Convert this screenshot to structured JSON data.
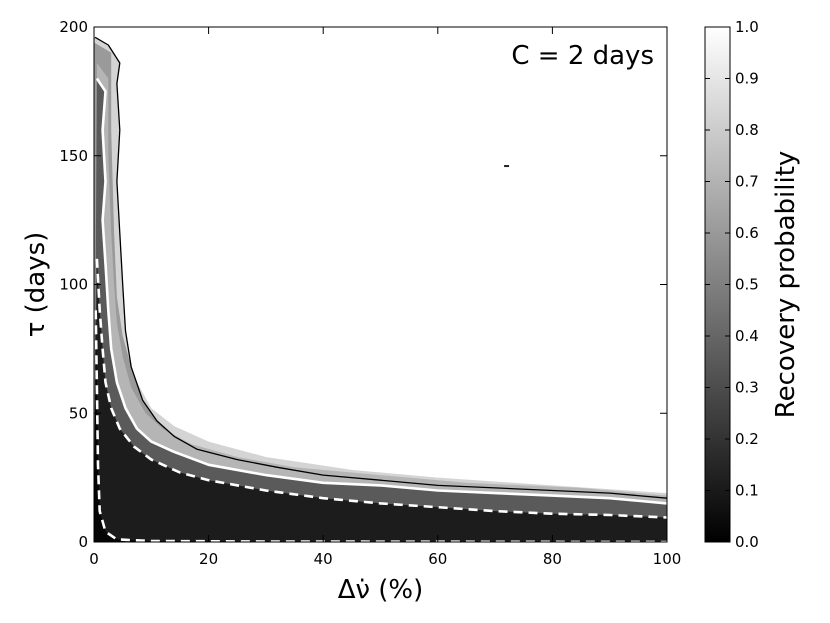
{
  "chart_data": {
    "type": "heatmap",
    "annotation": "C = 2 days",
    "xlabel": "Δν̇ (%)",
    "ylabel": "τ (days)",
    "xlim": [
      0,
      100
    ],
    "ylim": [
      0,
      200
    ],
    "xticks": [
      0,
      20,
      40,
      60,
      80,
      100
    ],
    "yticks": [
      0,
      50,
      100,
      150,
      200
    ],
    "colorbar": {
      "label": "Recovery probability",
      "range": [
        0.0,
        1.0
      ],
      "ticks": [
        "0.0",
        "0.1",
        "0.2",
        "0.3",
        "0.4",
        "0.5",
        "0.6",
        "0.7",
        "0.8",
        "0.9",
        "1.0"
      ],
      "colormap": "greyscale, black = 0.0, white = 1.0"
    },
    "contours": [
      {
        "level": 0.95,
        "style": "solid black",
        "points": [
          [
            0.2,
            196
          ],
          [
            2.5,
            193
          ],
          [
            4.5,
            186
          ],
          [
            4,
            178
          ],
          [
            4.5,
            160
          ],
          [
            4,
            140
          ],
          [
            4.5,
            120
          ],
          [
            5,
            100
          ],
          [
            5.5,
            82
          ],
          [
            6.5,
            68
          ],
          [
            8.5,
            55
          ],
          [
            11,
            47
          ],
          [
            14,
            41
          ],
          [
            18,
            36
          ],
          [
            25,
            32
          ],
          [
            32,
            29
          ],
          [
            40,
            26
          ],
          [
            50,
            24
          ],
          [
            60,
            22
          ],
          [
            70,
            21
          ],
          [
            80,
            20
          ],
          [
            90,
            19
          ],
          [
            100,
            17
          ]
        ]
      },
      {
        "level": 0.5,
        "style": "solid white",
        "points": [
          [
            0.5,
            180
          ],
          [
            2,
            175
          ],
          [
            1.5,
            160
          ],
          [
            2,
            140
          ],
          [
            1.5,
            125
          ],
          [
            2,
            108
          ],
          [
            2.5,
            90
          ],
          [
            3,
            75
          ],
          [
            4,
            62
          ],
          [
            5.5,
            52
          ],
          [
            7.5,
            44
          ],
          [
            10,
            39
          ],
          [
            14,
            35
          ],
          [
            20,
            30
          ],
          [
            30,
            26
          ],
          [
            40,
            23
          ],
          [
            50,
            22
          ],
          [
            60,
            20
          ],
          [
            70,
            19
          ],
          [
            80,
            18
          ],
          [
            90,
            17
          ],
          [
            100,
            15
          ]
        ]
      },
      {
        "level": 0.25,
        "style": "dashed white",
        "points": [
          [
            0.5,
            110
          ],
          [
            1,
            90
          ],
          [
            1.5,
            75
          ],
          [
            2,
            62
          ],
          [
            3,
            52
          ],
          [
            4.5,
            44
          ],
          [
            7,
            37
          ],
          [
            10,
            32
          ],
          [
            15,
            27
          ],
          [
            20,
            24
          ],
          [
            30,
            20
          ],
          [
            40,
            17
          ],
          [
            50,
            15
          ],
          [
            60,
            13.5
          ],
          [
            70,
            12
          ],
          [
            80,
            11
          ],
          [
            90,
            10.5
          ],
          [
            100,
            9.5
          ]
        ]
      },
      {
        "level": 0.05,
        "style": "dashed white",
        "points": [
          [
            0.3,
            90
          ],
          [
            0.5,
            60
          ],
          [
            0.7,
            30
          ],
          [
            1,
            12
          ],
          [
            2,
            4
          ],
          [
            4,
            1
          ],
          [
            10,
            0.4
          ],
          [
            30,
            0.2
          ],
          [
            60,
            0.1
          ],
          [
            100,
            0
          ]
        ]
      }
    ],
    "outliers": [
      [
        72,
        146
      ]
    ]
  }
}
